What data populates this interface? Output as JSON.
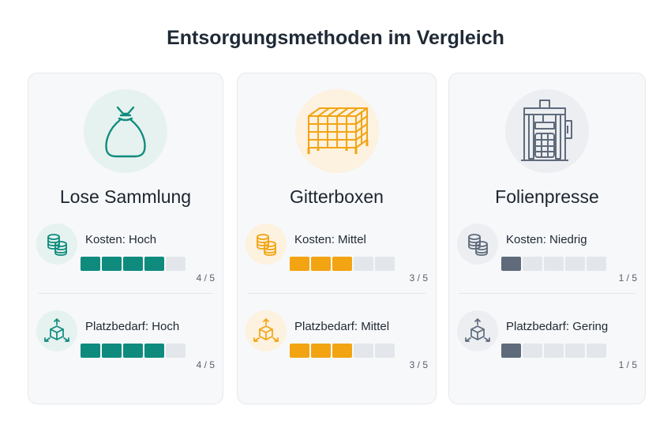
{
  "title": "Entsorgungsmethoden im Vergleich",
  "max_score": 5,
  "cards": [
    {
      "name": "Lose Sammlung",
      "hero_icon": "sack-icon",
      "accent": "#0f8b7e",
      "tint": "#e6f2ef",
      "metrics": [
        {
          "label": "Kosten: Hoch",
          "icon": "coins-icon",
          "value": 4,
          "score_text": "4 / 5"
        },
        {
          "label": "Platzbedarf: Hoch",
          "icon": "box-expand-icon",
          "value": 4,
          "score_text": "4 / 5"
        }
      ]
    },
    {
      "name": "Gitterboxen",
      "hero_icon": "wire-mesh-box-icon",
      "accent": "#f2a413",
      "tint": "#fdf1df",
      "metrics": [
        {
          "label": "Kosten: Mittel",
          "icon": "coins-icon",
          "value": 3,
          "score_text": "3 / 5"
        },
        {
          "label": "Platzbedarf: Mittel",
          "icon": "box-expand-icon",
          "value": 3,
          "score_text": "3 / 5"
        }
      ]
    },
    {
      "name": "Folienpresse",
      "hero_icon": "baling-press-icon",
      "accent": "#5f6b7b",
      "tint": "#eceef2",
      "metrics": [
        {
          "label": "Kosten: Niedrig",
          "icon": "coins-icon",
          "value": 1,
          "score_text": "1 / 5"
        },
        {
          "label": "Platzbedarf: Gering",
          "icon": "box-expand-icon",
          "value": 1,
          "score_text": "1 / 5"
        }
      ]
    }
  ]
}
